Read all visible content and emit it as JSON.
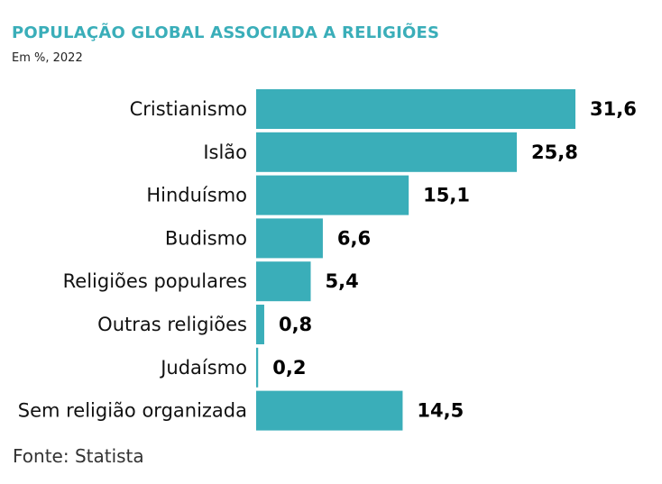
{
  "colors": {
    "title": "#3aaeb9",
    "bar": "#3aaeb9",
    "label": "#111111",
    "value": "#000000"
  },
  "chart_data": {
    "type": "bar",
    "orientation": "horizontal",
    "title": "POPULAÇÃO GLOBAL ASSOCIADA A RELIGIÕES",
    "subtitle": "Em %, 2022",
    "source": "Fonte: Statista",
    "categories": [
      "Cristianismo",
      "Islão",
      "Hinduísmo",
      "Budismo",
      "Religiões populares",
      "Outras religiões",
      "Judaísmo",
      "Sem religião organizada"
    ],
    "values": [
      31.6,
      25.8,
      15.1,
      6.6,
      5.4,
      0.8,
      0.2,
      14.5
    ],
    "value_labels": [
      "31,6",
      "25,8",
      "15,1",
      "6,6",
      "5,4",
      "0,8",
      "0,2",
      "14,5"
    ],
    "xlim": [
      0,
      31.6
    ],
    "xlabel": "",
    "ylabel": "",
    "grid": false,
    "legend": "none"
  }
}
